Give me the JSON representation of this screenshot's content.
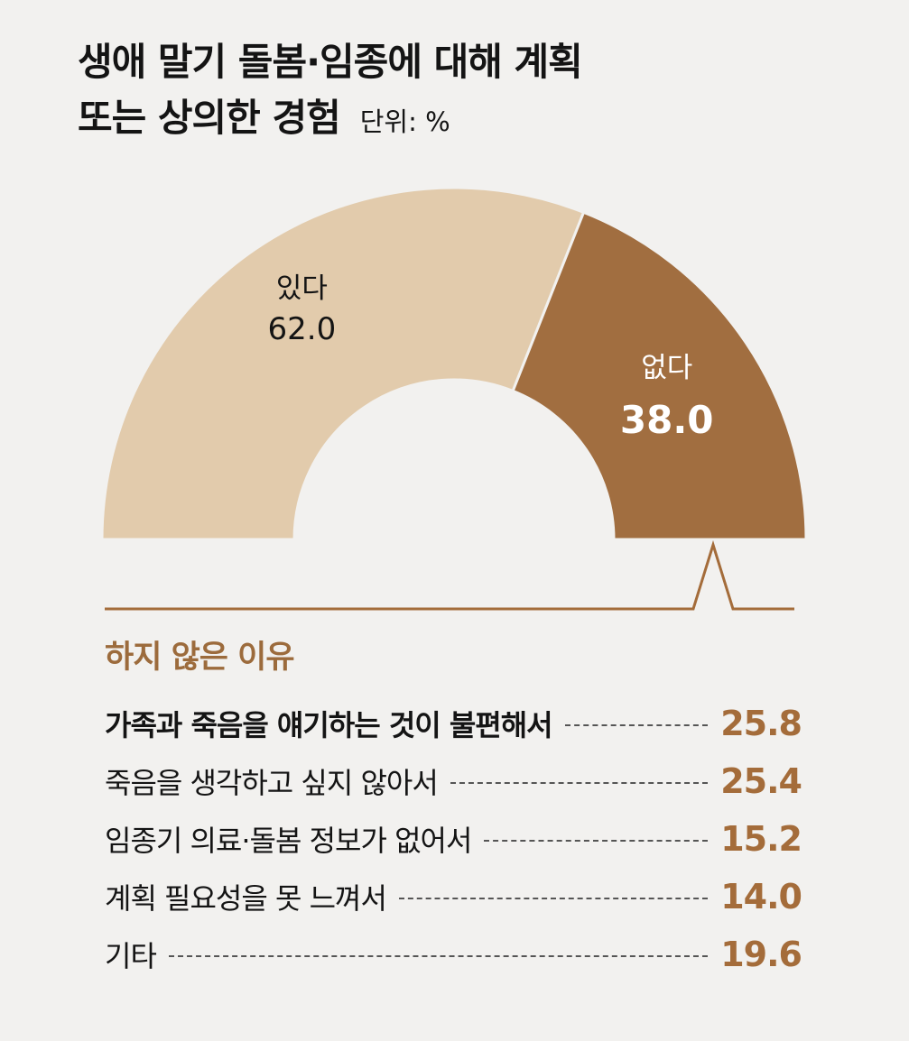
{
  "title_line1": "생애 말기 돌봄·임종에 대해 계획",
  "title_line2": "또는 상의한 경험",
  "unit": "단위: %",
  "chart_data": {
    "type": "pie",
    "variant": "half-donut",
    "slices": [
      {
        "label": "있다",
        "value": 62.0,
        "value_text": "62.0",
        "color": "#e2cbac"
      },
      {
        "label": "없다",
        "value": 38.0,
        "value_text": "38.0",
        "color": "#a16e40"
      }
    ]
  },
  "reasons": {
    "title": "하지 않은 이유",
    "items": [
      {
        "label": "가족과 죽음을 얘기하는 것이 불편해서",
        "value": "25.8"
      },
      {
        "label": "죽음을 생각하고 싶지 않아서",
        "value": "25.4"
      },
      {
        "label": "임종기 의료·돌봄 정보가 없어서",
        "value": "15.2"
      },
      {
        "label": "계획 필요성을 못 느껴서",
        "value": "14.0"
      },
      {
        "label": "기타",
        "value": "19.6"
      }
    ]
  },
  "colors": {
    "accent": "#9c6b3c",
    "light": "#e2cbac",
    "dark": "#a16e40"
  }
}
